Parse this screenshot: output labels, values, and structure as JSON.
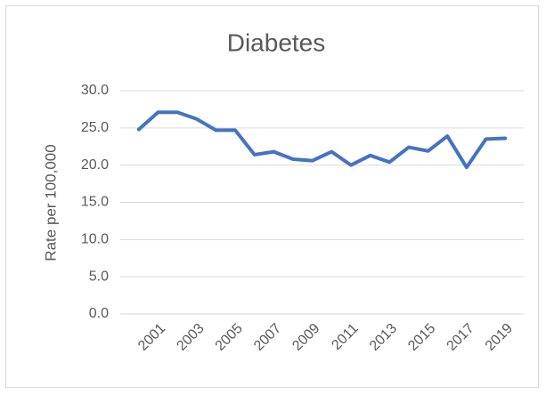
{
  "chart_data": {
    "type": "line",
    "title": "Diabetes",
    "y_label": "Rate per 100,000",
    "categories": [
      null,
      "2001",
      null,
      "2003",
      null,
      "2005",
      null,
      "2007",
      null,
      "2009",
      null,
      "2011",
      null,
      "2013",
      null,
      "2015",
      null,
      "2017",
      null,
      "2019"
    ],
    "series": [
      {
        "name": "Diabetes",
        "color": "#4472c4",
        "values": [
          24.8,
          27.1,
          27.1,
          26.2,
          24.7,
          24.7,
          21.4,
          21.8,
          20.8,
          20.6,
          21.8,
          20.0,
          21.3,
          20.4,
          22.4,
          21.9,
          23.9,
          19.7,
          23.5,
          23.6
        ]
      }
    ],
    "ylim": [
      0,
      30
    ],
    "yticks": [
      {
        "value": 0,
        "label": "0.0"
      },
      {
        "value": 5,
        "label": "5.0"
      },
      {
        "value": 10,
        "label": "10.0"
      },
      {
        "value": 15,
        "label": "15.0"
      },
      {
        "value": 20,
        "label": "20.0"
      },
      {
        "value": 25,
        "label": "25.0"
      },
      {
        "value": 30,
        "label": "30.0"
      }
    ],
    "grid": true
  }
}
